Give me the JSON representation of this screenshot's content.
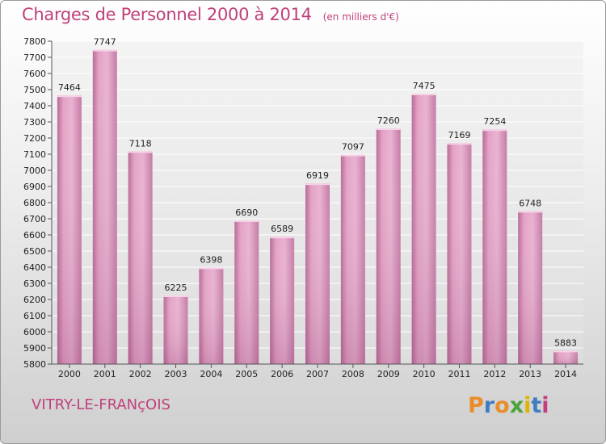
{
  "title": "Charges de Personnel 2000 à 2014",
  "unit": "(en milliers d'€)",
  "commune": "VITRY-LE-FRANçOIS",
  "logo": {
    "letters": [
      "P",
      "r",
      "o",
      "x",
      "i",
      "t",
      "i"
    ],
    "colors": [
      "#e98d2a",
      "#3e7dc2",
      "#e98d2a",
      "#4aa43b",
      "#e0b400",
      "#3e7dc2",
      "#c43d7e"
    ]
  },
  "colors": {
    "bar": "#e4a3c6",
    "bar_dark": "#b76a97",
    "accent": "#c0407a"
  },
  "chart_data": {
    "type": "bar",
    "categories": [
      "2000",
      "2001",
      "2002",
      "2003",
      "2004",
      "2005",
      "2006",
      "2007",
      "2008",
      "2009",
      "2010",
      "2011",
      "2012",
      "2013",
      "2014"
    ],
    "values": [
      7464,
      7747,
      7118,
      6225,
      6398,
      6690,
      6589,
      6919,
      7097,
      7260,
      7475,
      7169,
      7254,
      6748,
      5883
    ],
    "ylim": [
      5800,
      7800
    ],
    "yticks": [
      5800,
      5900,
      6000,
      6100,
      6200,
      6300,
      6400,
      6500,
      6600,
      6700,
      6800,
      6900,
      7000,
      7100,
      7200,
      7300,
      7400,
      7500,
      7600,
      7700,
      7800
    ],
    "grid": true
  }
}
